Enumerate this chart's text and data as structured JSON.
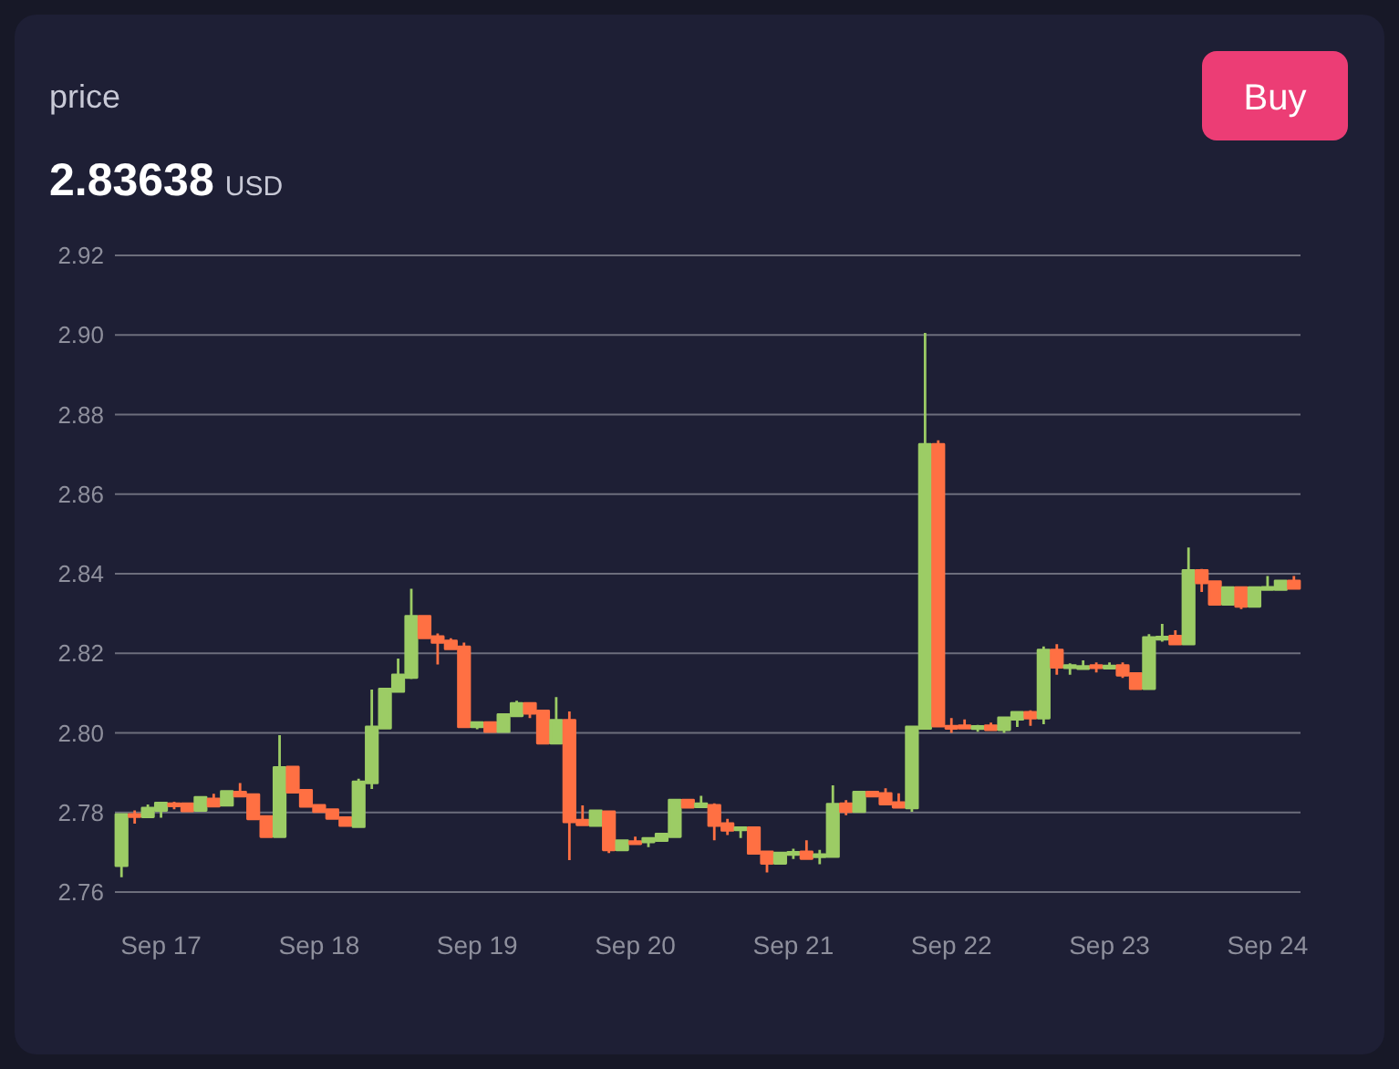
{
  "chart_data": {
    "type": "candlestick",
    "title": "price",
    "subtitle": "2.83638 USD",
    "annotations": [
      "Buy"
    ],
    "categories": [
      null,
      null,
      null,
      "Sep 17",
      null,
      null,
      null,
      null,
      null,
      null,
      null,
      null,
      null,
      null,
      null,
      "Sep 18",
      null,
      null,
      null,
      null,
      null,
      null,
      null,
      null,
      null,
      null,
      null,
      "Sep 19",
      null,
      null,
      null,
      null,
      null,
      null,
      null,
      null,
      null,
      null,
      null,
      "Sep 20",
      null,
      null,
      null,
      null,
      null,
      null,
      null,
      null,
      null,
      null,
      null,
      "Sep 21",
      null,
      null,
      null,
      null,
      null,
      null,
      null,
      null,
      null,
      null,
      null,
      "Sep 22",
      null,
      null,
      null,
      null,
      null,
      null,
      null,
      null,
      null,
      null,
      null,
      "Sep 23",
      null,
      null,
      null,
      null,
      null,
      null,
      null,
      null,
      null,
      null,
      null,
      "Sep 24",
      null,
      null
    ],
    "ohlc": [
      [
        2.7666,
        2.7795,
        2.7637,
        2.7795
      ],
      [
        2.7795,
        2.7805,
        2.7772,
        2.7792
      ],
      [
        2.7789,
        2.782,
        2.7789,
        2.7811
      ],
      [
        2.7805,
        2.7824,
        2.7787,
        2.7824
      ],
      [
        2.7822,
        2.7827,
        2.7808,
        2.782
      ],
      [
        2.7822,
        2.7822,
        2.7801,
        2.7804
      ],
      [
        2.7805,
        2.7838,
        2.7805,
        2.7838
      ],
      [
        2.7834,
        2.7847,
        2.7816,
        2.7816
      ],
      [
        2.7818,
        2.7853,
        2.7818,
        2.7853
      ],
      [
        2.7851,
        2.7874,
        2.7841,
        2.7841
      ],
      [
        2.7845,
        2.7845,
        2.7781,
        2.7784
      ],
      [
        2.779,
        2.779,
        2.7739,
        2.7739
      ],
      [
        2.7739,
        2.7994,
        2.7739,
        2.7913
      ],
      [
        2.7914,
        2.7914,
        2.7851,
        2.7851
      ],
      [
        2.7856,
        2.7856,
        2.7815,
        2.7815
      ],
      [
        2.7818,
        2.7818,
        2.7802,
        2.7802
      ],
      [
        2.7807,
        2.7807,
        2.7785,
        2.7785
      ],
      [
        2.7787,
        2.7787,
        2.7767,
        2.7767
      ],
      [
        2.7764,
        2.7885,
        2.7761,
        2.7877
      ],
      [
        2.7874,
        2.8109,
        2.7859,
        2.8015
      ],
      [
        2.8012,
        2.811,
        2.8012,
        2.811
      ],
      [
        2.8104,
        2.8187,
        2.8104,
        2.8146
      ],
      [
        2.8139,
        2.8362,
        2.8135,
        2.8293
      ],
      [
        2.8293,
        2.8293,
        2.8239,
        2.8239
      ],
      [
        2.8242,
        2.825,
        2.8172,
        2.8227
      ],
      [
        2.8231,
        2.8238,
        2.8211,
        2.8211
      ],
      [
        2.8216,
        2.8227,
        2.8015,
        2.8015
      ],
      [
        2.8015,
        2.8026,
        2.8009,
        2.8026
      ],
      [
        2.8026,
        2.8026,
        2.8003,
        2.8003
      ],
      [
        2.8003,
        2.8046,
        2.8003,
        2.8046
      ],
      [
        2.8043,
        2.8081,
        2.8043,
        2.8074
      ],
      [
        2.8074,
        2.8074,
        2.8037,
        2.8049
      ],
      [
        2.8055,
        2.8055,
        2.7974,
        2.7974
      ],
      [
        2.7974,
        2.809,
        2.7974,
        2.8032
      ],
      [
        2.8032,
        2.8054,
        2.768,
        2.7776
      ],
      [
        2.7781,
        2.7818,
        2.7769,
        2.7769
      ],
      [
        2.7767,
        2.7804,
        2.7767,
        2.7804
      ],
      [
        2.7802,
        2.7802,
        2.7698,
        2.7706
      ],
      [
        2.7706,
        2.7729,
        2.7706,
        2.7729
      ],
      [
        2.7727,
        2.7739,
        2.772,
        2.7724
      ],
      [
        2.7726,
        2.7735,
        2.7713,
        2.7735
      ],
      [
        2.7729,
        2.7746,
        2.7729,
        2.7746
      ],
      [
        2.7739,
        2.7831,
        2.7739,
        2.7831
      ],
      [
        2.7831,
        2.7831,
        2.7813,
        2.7813
      ],
      [
        2.7814,
        2.7842,
        2.7814,
        2.7822
      ],
      [
        2.7818,
        2.7823,
        2.773,
        2.7767
      ],
      [
        2.7772,
        2.7784,
        2.7743,
        2.7755
      ],
      [
        2.7759,
        2.7764,
        2.7736,
        2.7762
      ],
      [
        2.7762,
        2.7762,
        2.7697,
        2.7697
      ],
      [
        2.7701,
        2.7701,
        2.7649,
        2.7672
      ],
      [
        2.7672,
        2.7698,
        2.7672,
        2.7698
      ],
      [
        2.7696,
        2.7709,
        2.7683,
        2.77
      ],
      [
        2.7701,
        2.773,
        2.7684,
        2.7684
      ],
      [
        2.7691,
        2.7706,
        2.767,
        2.7694
      ],
      [
        2.7689,
        2.7868,
        2.7689,
        2.7821
      ],
      [
        2.7822,
        2.7831,
        2.7793,
        2.7802
      ],
      [
        2.7802,
        2.7851,
        2.7802,
        2.7851
      ],
      [
        2.7851,
        2.7851,
        2.7838,
        2.7841
      ],
      [
        2.7848,
        2.7861,
        2.7821,
        2.7821
      ],
      [
        2.7825,
        2.7848,
        2.7813,
        2.7813
      ],
      [
        2.7811,
        2.8015,
        2.7802,
        2.8015
      ],
      [
        2.8011,
        2.9005,
        2.8008,
        2.8725
      ],
      [
        2.8725,
        2.8735,
        2.8017,
        2.8017
      ],
      [
        2.8017,
        2.8037,
        2.8,
        2.8015
      ],
      [
        2.8018,
        2.8034,
        2.8012,
        2.8012
      ],
      [
        2.8013,
        2.802,
        2.8003,
        2.8016
      ],
      [
        2.8018,
        2.8026,
        2.8008,
        2.8008
      ],
      [
        2.8008,
        2.8038,
        2.8,
        2.8038
      ],
      [
        2.8034,
        2.8052,
        2.8015,
        2.8052
      ],
      [
        2.8052,
        2.8057,
        2.8018,
        2.8037
      ],
      [
        2.8037,
        2.8217,
        2.8022,
        2.8208
      ],
      [
        2.8208,
        2.8223,
        2.8146,
        2.8165
      ],
      [
        2.8166,
        2.8175,
        2.8146,
        2.8169
      ],
      [
        2.8164,
        2.8182,
        2.816,
        2.8167
      ],
      [
        2.8169,
        2.8177,
        2.8152,
        2.8166
      ],
      [
        2.8166,
        2.8177,
        2.8166,
        2.8168
      ],
      [
        2.8169,
        2.8177,
        2.8138,
        2.8145
      ],
      [
        2.8149,
        2.8149,
        2.8111,
        2.8111
      ],
      [
        2.8111,
        2.8248,
        2.8111,
        2.824
      ],
      [
        2.8238,
        2.8274,
        2.8229,
        2.8241
      ],
      [
        2.8243,
        2.8258,
        2.8223,
        2.8223
      ],
      [
        2.8223,
        2.8466,
        2.8223,
        2.8408
      ],
      [
        2.8408,
        2.8412,
        2.8354,
        2.8377
      ],
      [
        2.838,
        2.838,
        2.8323,
        2.8323
      ],
      [
        2.8323,
        2.8365,
        2.8323,
        2.8365
      ],
      [
        2.8365,
        2.8365,
        2.8311,
        2.8318
      ],
      [
        2.8318,
        2.8365,
        2.8318,
        2.8365
      ],
      [
        2.8364,
        2.8394,
        2.8358,
        2.8366
      ],
      [
        2.836,
        2.8382,
        2.8357,
        2.8382
      ],
      [
        2.8382,
        2.8394,
        2.8363,
        2.8363
      ]
    ],
    "colors": [
      "#9ccc65",
      "#ff7043",
      "#9ccc65",
      "#9ccc65",
      "#ff7043",
      "#ff7043",
      "#9ccc65",
      "#ff7043",
      "#9ccc65",
      "#ff7043",
      "#ff7043",
      "#ff7043",
      "#9ccc65",
      "#ff7043",
      "#ff7043",
      "#ff7043",
      "#ff7043",
      "#ff7043",
      "#9ccc65",
      "#9ccc65",
      "#9ccc65",
      "#9ccc65",
      "#9ccc65",
      "#ff7043",
      "#ff7043",
      "#ff7043",
      "#ff7043",
      "#9ccc65",
      "#ff7043",
      "#9ccc65",
      "#9ccc65",
      "#ff7043",
      "#ff7043",
      "#9ccc65",
      "#ff7043",
      "#ff7043",
      "#9ccc65",
      "#ff7043",
      "#9ccc65",
      "#ff7043",
      "#9ccc65",
      "#9ccc65",
      "#9ccc65",
      "#ff7043",
      "#9ccc65",
      "#ff7043",
      "#ff7043",
      "#9ccc65",
      "#ff7043",
      "#ff7043",
      "#9ccc65",
      "#9ccc65",
      "#ff7043",
      "#9ccc65",
      "#9ccc65",
      "#ff7043",
      "#9ccc65",
      "#ff7043",
      "#ff7043",
      "#ff7043",
      "#9ccc65",
      "#9ccc65",
      "#ff7043",
      "#ff7043",
      "#ff7043",
      "#9ccc65",
      "#ff7043",
      "#9ccc65",
      "#9ccc65",
      "#ff7043",
      "#9ccc65",
      "#ff7043",
      "#9ccc65",
      "#9ccc65",
      "#ff7043",
      "#9ccc65",
      "#ff7043",
      "#ff7043",
      "#9ccc65",
      "#9ccc65",
      "#ff7043",
      "#9ccc65",
      "#ff7043",
      "#ff7043",
      "#9ccc65",
      "#ff7043",
      "#9ccc65",
      "#9ccc65",
      "#9ccc65",
      "#ff7043"
    ],
    "ylim": [
      2.76,
      2.92
    ],
    "yticks": [
      2.76,
      2.78,
      {
        "value": 2.8,
        "label": "2.80"
      },
      2.82,
      2.84,
      2.86,
      2.88,
      {
        "value": 2.9,
        "label": "2.90"
      },
      2.92
    ],
    "grid": "y"
  }
}
